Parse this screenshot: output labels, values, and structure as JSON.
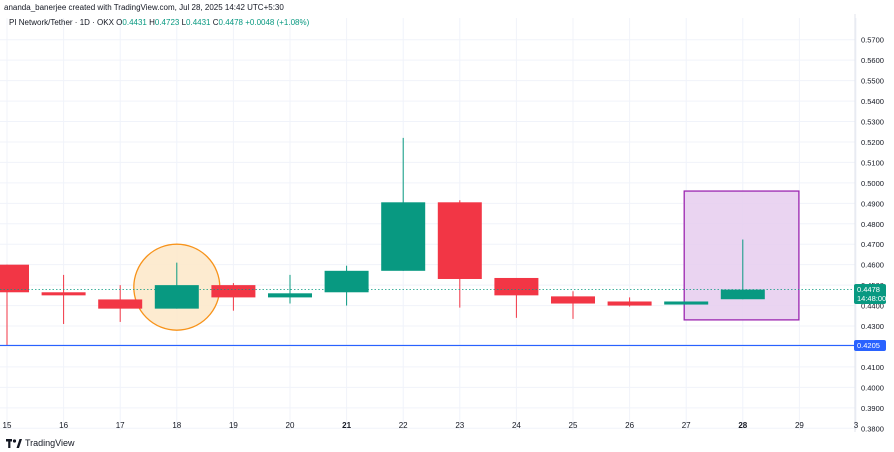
{
  "header": {
    "creator": "ananda_banerjee created with TradingView.com, Jul 28, 2025 14:42 UTC+5:30",
    "symbol": "PI Network/Tether · 1D · OKX",
    "o_label": "O",
    "o_value": "0.4431",
    "h_label": "H",
    "h_value": "0.4723",
    "l_label": "L",
    "l_value": "0.4431",
    "c_label": "C",
    "c_value": "0.4478",
    "change": "+0.0048 (+1.08%)"
  },
  "price_tag": {
    "price": "0.4478",
    "countdown": "14:48:00",
    "color": "#089981"
  },
  "level_tag": {
    "price": "0.4205",
    "color": "#2962ff"
  },
  "footer": {
    "brand": "TradingView"
  },
  "colors": {
    "up": "#089981",
    "down": "#f23645",
    "highlight_circle": "#f7931a",
    "highlight_box": "#9c27b0"
  },
  "chart_data": {
    "type": "candlestick",
    "ylim": [
      0.375,
      0.575
    ],
    "y_ticks": [
      "0.5700",
      "0.5600",
      "0.5500",
      "0.5400",
      "0.5300",
      "0.5200",
      "0.5100",
      "0.5000",
      "0.4900",
      "0.4800",
      "0.4700",
      "0.4600",
      "0.4500",
      "0.4400",
      "0.4300",
      "0.4200",
      "0.4100",
      "0.4000",
      "0.3900",
      "0.3800"
    ],
    "x_ticks": [
      "15",
      "16",
      "17",
      "18",
      "19",
      "20",
      "21",
      "22",
      "23",
      "24",
      "25",
      "26",
      "27",
      "28",
      "29",
      "3"
    ],
    "x_bold": [
      "21",
      "28"
    ],
    "candles": [
      {
        "x": "15",
        "o": 0.46,
        "h": 0.46,
        "l": 0.4205,
        "c": 0.4465
      },
      {
        "x": "16",
        "o": 0.4465,
        "h": 0.455,
        "l": 0.431,
        "c": 0.445
      },
      {
        "x": "17",
        "o": 0.443,
        "h": 0.45,
        "l": 0.432,
        "c": 0.4385
      },
      {
        "x": "18",
        "o": 0.4385,
        "h": 0.461,
        "l": 0.4385,
        "c": 0.45
      },
      {
        "x": "19",
        "o": 0.45,
        "h": 0.451,
        "l": 0.4375,
        "c": 0.444
      },
      {
        "x": "20",
        "o": 0.444,
        "h": 0.455,
        "l": 0.441,
        "c": 0.446
      },
      {
        "x": "21",
        "o": 0.4465,
        "h": 0.4595,
        "l": 0.44,
        "c": 0.457
      },
      {
        "x": "22",
        "o": 0.457,
        "h": 0.522,
        "l": 0.457,
        "c": 0.4905
      },
      {
        "x": "23",
        "o": 0.4905,
        "h": 0.4915,
        "l": 0.439,
        "c": 0.453
      },
      {
        "x": "24",
        "o": 0.4535,
        "h": 0.4535,
        "l": 0.434,
        "c": 0.445
      },
      {
        "x": "25",
        "o": 0.4445,
        "h": 0.447,
        "l": 0.4335,
        "c": 0.441
      },
      {
        "x": "26",
        "o": 0.442,
        "h": 0.444,
        "l": 0.4395,
        "c": 0.44
      },
      {
        "x": "27",
        "o": 0.4405,
        "h": 0.442,
        "l": 0.4405,
        "c": 0.442
      },
      {
        "x": "28",
        "o": 0.4431,
        "h": 0.4723,
        "l": 0.4431,
        "c": 0.4478
      }
    ],
    "horizontal_line": 0.4205,
    "current_price_line": 0.4478,
    "highlight_circle": {
      "x": "18",
      "y": 0.449
    },
    "highlight_box": {
      "x_from": "27",
      "x_to": "29",
      "y_from": 0.433,
      "y_to": 0.496
    }
  }
}
